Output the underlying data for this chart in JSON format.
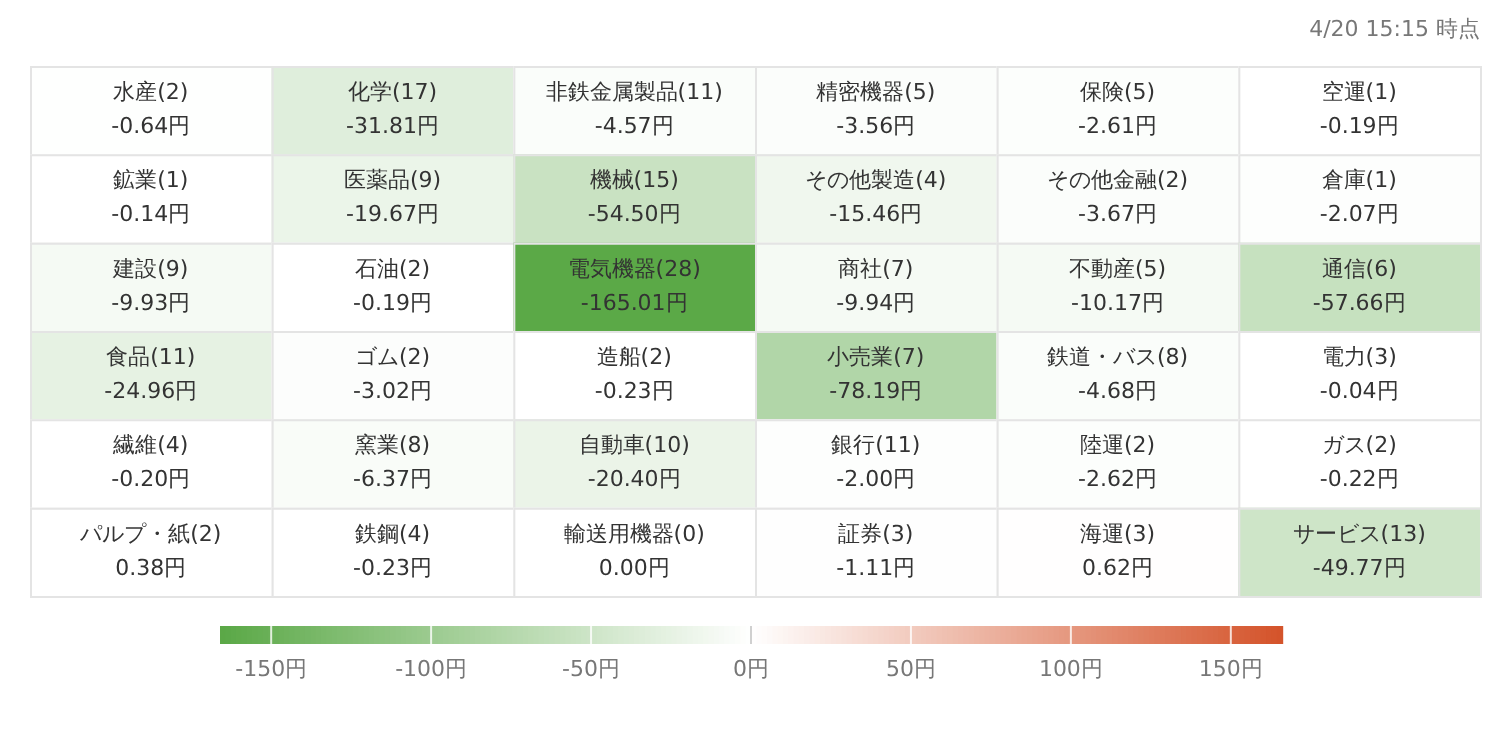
{
  "chart_data": {
    "type": "heatmap",
    "subtitle": "4/20 15:15 時点",
    "categories": [
      null,
      null,
      null,
      null,
      null,
      null
    ],
    "y_categories": [
      null,
      null,
      null,
      null,
      null,
      null
    ],
    "cells": [
      [
        -0.64,
        -31.81,
        -4.57,
        -3.56,
        -2.61,
        -0.19
      ],
      [
        -0.14,
        -19.67,
        -54.5,
        -15.46,
        -3.67,
        -2.07
      ],
      [
        -9.93,
        -0.19,
        -165.01,
        -9.94,
        -10.17,
        -57.66
      ],
      [
        -24.96,
        -3.02,
        -0.23,
        -78.19,
        -4.68,
        -0.04
      ],
      [
        -0.2,
        -6.37,
        -20.4,
        -2.0,
        -2.62,
        -0.22
      ],
      [
        0.38,
        -0.23,
        0.0,
        -1.11,
        0.62,
        -49.77
      ]
    ],
    "cell_labels": [
      [
        "水産(2)\n-0.64円",
        "化学(17)\n-31.81円",
        "非鉄金属製品(11)\n-4.57円",
        "精密機器(5)\n-3.56円",
        "保険(5)\n-2.61円",
        "空運(1)\n-0.19円"
      ],
      [
        "鉱業(1)\n-0.14円",
        "医薬品(9)\n-19.67円",
        "機械(15)\n-54.50円",
        "その他製造(4)\n-15.46円",
        "その他金融(2)\n-3.67円",
        "倉庫(1)\n-2.07円"
      ],
      [
        "建設(9)\n-9.93円",
        "石油(2)\n-0.19円",
        "電気機器(28)\n-165.01円",
        "商社(7)\n-9.94円",
        "不動産(5)\n-10.17円",
        "通信(6)\n-57.66円"
      ],
      [
        "食品(11)\n-24.96円",
        "ゴム(2)\n-3.02円",
        "造船(2)\n-0.23円",
        "小売業(7)\n-78.19円",
        "鉄道・バス(8)\n-4.68円",
        "電力(3)\n-0.04円"
      ],
      [
        "繊維(4)\n-0.20円",
        "窯業(8)\n-6.37円",
        "自動車(10)\n-20.40円",
        "銀行(11)\n-2.00円",
        "陸運(2)\n-2.62円",
        "ガス(2)\n-0.22円"
      ],
      [
        "パルプ・紙(2)\n0.38円",
        "鉄鋼(4)\n-0.23円",
        "輸送用機器(0)\n0.00円",
        "証券(3)\n-1.11円",
        "海運(3)\n0.62円",
        "サービス(13)\n-49.77円"
      ]
    ],
    "clim": [
      -166,
      166
    ],
    "cticks": [
      {
        "value": -150,
        "label": "-150円"
      },
      {
        "value": -100,
        "label": "-100円"
      },
      {
        "value": -50,
        "label": "-50円"
      },
      {
        "value": 0,
        "label": "0円"
      },
      {
        "value": 50,
        "label": "50円"
      },
      {
        "value": 100,
        "label": "100円"
      },
      {
        "value": 150,
        "label": "150円"
      }
    ]
  }
}
